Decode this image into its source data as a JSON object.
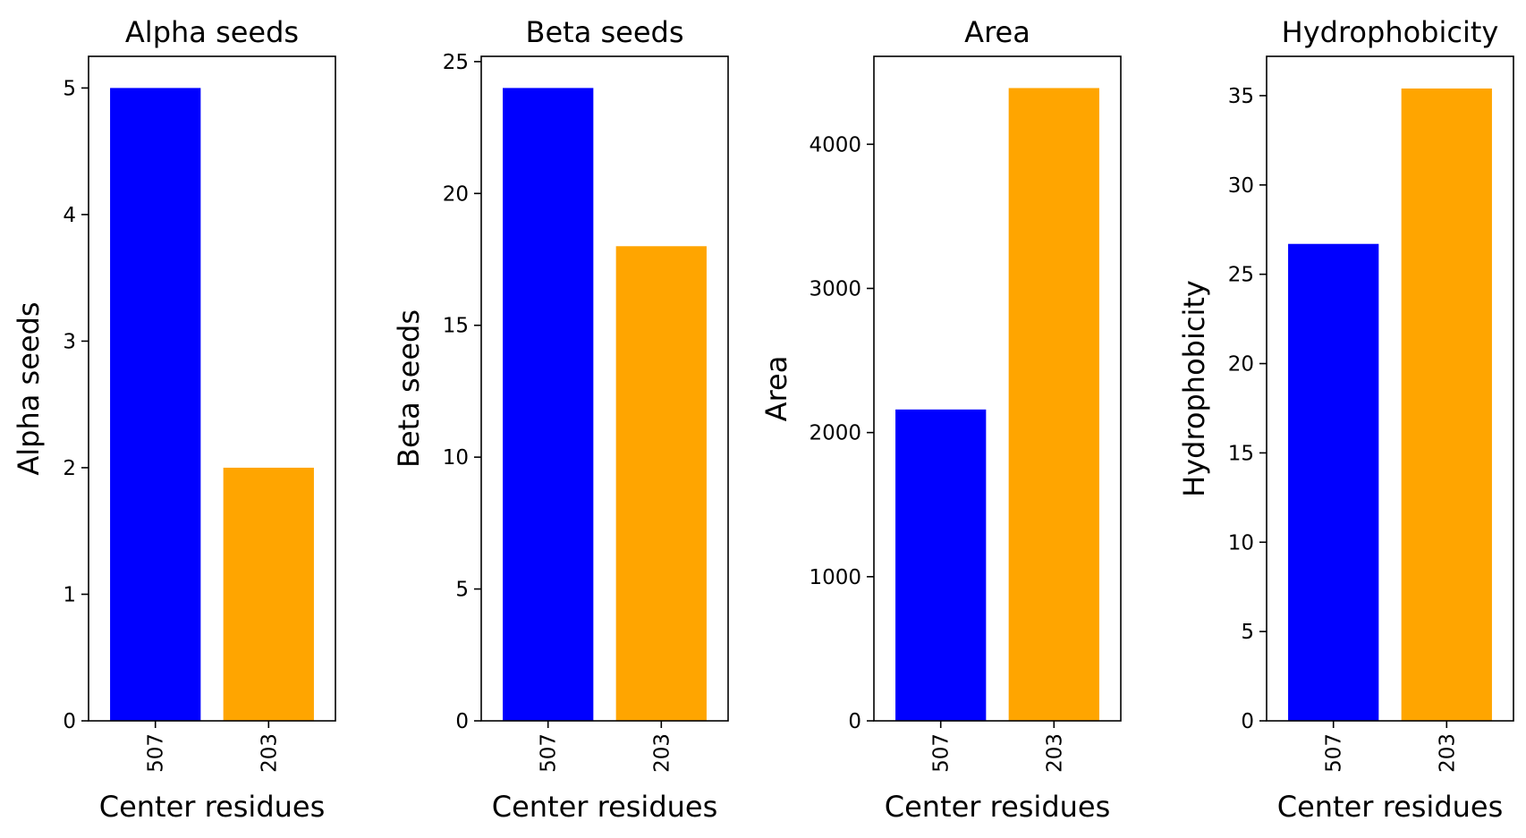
{
  "chart_data": [
    {
      "type": "bar",
      "title": "Alpha seeds",
      "xlabel": "Center residues",
      "ylabel": "Alpha seeds",
      "categories": [
        "507",
        "203"
      ],
      "values": [
        5,
        2
      ],
      "colors": [
        "#0000ff",
        "#ffa500"
      ],
      "ylim": [
        0,
        5.25
      ],
      "yticks": [
        0,
        1,
        2,
        3,
        4,
        5
      ],
      "grid": false
    },
    {
      "type": "bar",
      "title": "Beta seeds",
      "xlabel": "Center residues",
      "ylabel": "Beta seeds",
      "categories": [
        "507",
        "203"
      ],
      "values": [
        24,
        18
      ],
      "colors": [
        "#0000ff",
        "#ffa500"
      ],
      "ylim": [
        0,
        25.2
      ],
      "yticks": [
        0,
        5,
        10,
        15,
        20,
        25
      ],
      "grid": false
    },
    {
      "type": "bar",
      "title": "Area",
      "xlabel": "Center residues",
      "ylabel": "Area",
      "categories": [
        "507",
        "203"
      ],
      "values": [
        2160,
        4390
      ],
      "colors": [
        "#0000ff",
        "#ffa500"
      ],
      "ylim": [
        0,
        4610
      ],
      "yticks": [
        0,
        1000,
        2000,
        3000,
        4000
      ],
      "grid": false
    },
    {
      "type": "bar",
      "title": "Hydrophobicity",
      "xlabel": "Center residues",
      "ylabel": "Hydrophobicity",
      "categories": [
        "507",
        "203"
      ],
      "values": [
        26.7,
        35.4
      ],
      "colors": [
        "#0000ff",
        "#ffa500"
      ],
      "ylim": [
        0,
        37.2
      ],
      "yticks": [
        0,
        5,
        10,
        15,
        20,
        25,
        30,
        35
      ],
      "grid": false
    }
  ]
}
